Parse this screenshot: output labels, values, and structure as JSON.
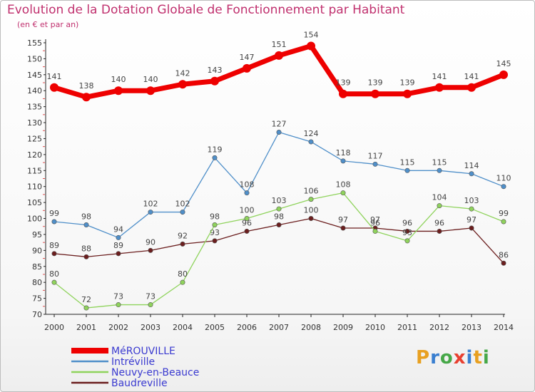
{
  "title": "Evolution de la Dotation Globale de Fonctionnement par Habitant",
  "subtitle": "(en € et par an)",
  "brand": {
    "text": "Proxiti",
    "colors": [
      "#e8a020",
      "#3a7fd0",
      "#46a848",
      "#e84030",
      "#3a7fd0",
      "#e8a020",
      "#46a848"
    ]
  },
  "chart_data": {
    "type": "line",
    "title": "Evolution de la Dotation Globale de Fonctionnement par Habitant",
    "subtitle": "(en € et par an)",
    "x": [
      "2000",
      "2001",
      "2002",
      "2003",
      "2004",
      "2005",
      "2006",
      "2007",
      "2008",
      "2009",
      "2010",
      "2011",
      "2012",
      "2013",
      "2014"
    ],
    "ylim": [
      70,
      155
    ],
    "yticks": [
      70,
      75,
      80,
      85,
      90,
      95,
      100,
      105,
      110,
      115,
      120,
      125,
      130,
      135,
      140,
      145,
      150,
      155
    ],
    "grid": false,
    "legend": "bottom-left",
    "series": [
      {
        "name": "MéROUVILLE",
        "color": "#ee0000",
        "values": [
          141,
          138,
          140,
          140,
          142,
          143,
          147,
          151,
          154,
          139,
          139,
          139,
          141,
          141,
          145
        ]
      },
      {
        "name": "Intréville",
        "color": "#4f8fc9",
        "values": [
          99,
          98,
          94,
          102,
          102,
          119,
          108,
          127,
          124,
          118,
          117,
          115,
          115,
          114,
          110
        ]
      },
      {
        "name": "Neuvy-en-Beauce",
        "color": "#8fd35c",
        "values": [
          80,
          72,
          73,
          73,
          80,
          98,
          100,
          103,
          106,
          108,
          96,
          93,
          104,
          103,
          99
        ]
      },
      {
        "name": "Baudreville",
        "color": "#6b1e1e",
        "values": [
          89,
          88,
          89,
          90,
          92,
          93,
          96,
          98,
          100,
          97,
          97,
          96,
          96,
          97,
          86
        ]
      }
    ]
  }
}
